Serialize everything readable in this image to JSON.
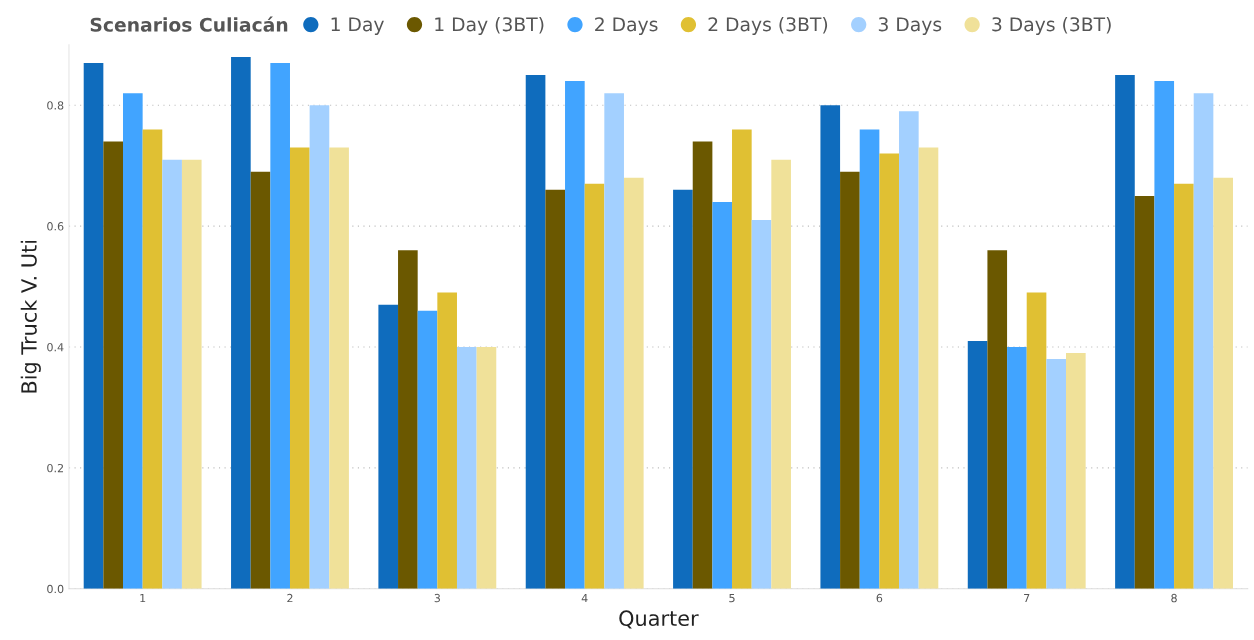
{
  "chart_data": {
    "type": "bar",
    "xlabel": "Quarter",
    "ylabel": "Big Truck V. Uti",
    "legend_title": "Scenarios Culiacán",
    "categories": [
      "1",
      "2",
      "3",
      "4",
      "5",
      "6",
      "7",
      "8"
    ],
    "series": [
      {
        "name": "1 Day",
        "color": "#0f6cbd",
        "values": [
          0.87,
          0.88,
          0.47,
          0.85,
          0.66,
          0.8,
          0.41,
          0.85
        ]
      },
      {
        "name": "1 Day (3BT)",
        "color": "#6b5800",
        "values": [
          0.74,
          0.69,
          0.56,
          0.66,
          0.74,
          0.69,
          0.56,
          0.65
        ]
      },
      {
        "name": "2 Days",
        "color": "#41a4ff",
        "values": [
          0.82,
          0.87,
          0.46,
          0.84,
          0.64,
          0.76,
          0.4,
          0.84
        ]
      },
      {
        "name": "2 Days (3BT)",
        "color": "#e0c033",
        "values": [
          0.76,
          0.73,
          0.49,
          0.67,
          0.76,
          0.72,
          0.49,
          0.67
        ]
      },
      {
        "name": "3 Days",
        "color": "#a3d0ff",
        "values": [
          0.71,
          0.8,
          0.4,
          0.82,
          0.61,
          0.79,
          0.38,
          0.82
        ]
      },
      {
        "name": "3 Days (3BT)",
        "color": "#f0e199",
        "values": [
          0.71,
          0.73,
          0.4,
          0.68,
          0.71,
          0.73,
          0.39,
          0.68
        ]
      }
    ],
    "ylim": [
      0,
      0.9
    ],
    "yticks": [
      {
        "value": 0,
        "label": "0.0"
      },
      {
        "value": 0.2,
        "label": "0.2"
      },
      {
        "value": 0.4,
        "label": "0.4"
      },
      {
        "value": 0.6,
        "label": "0.6"
      },
      {
        "value": 0.8,
        "label": "0.8"
      }
    ],
    "grid": "y",
    "legend": "top"
  }
}
